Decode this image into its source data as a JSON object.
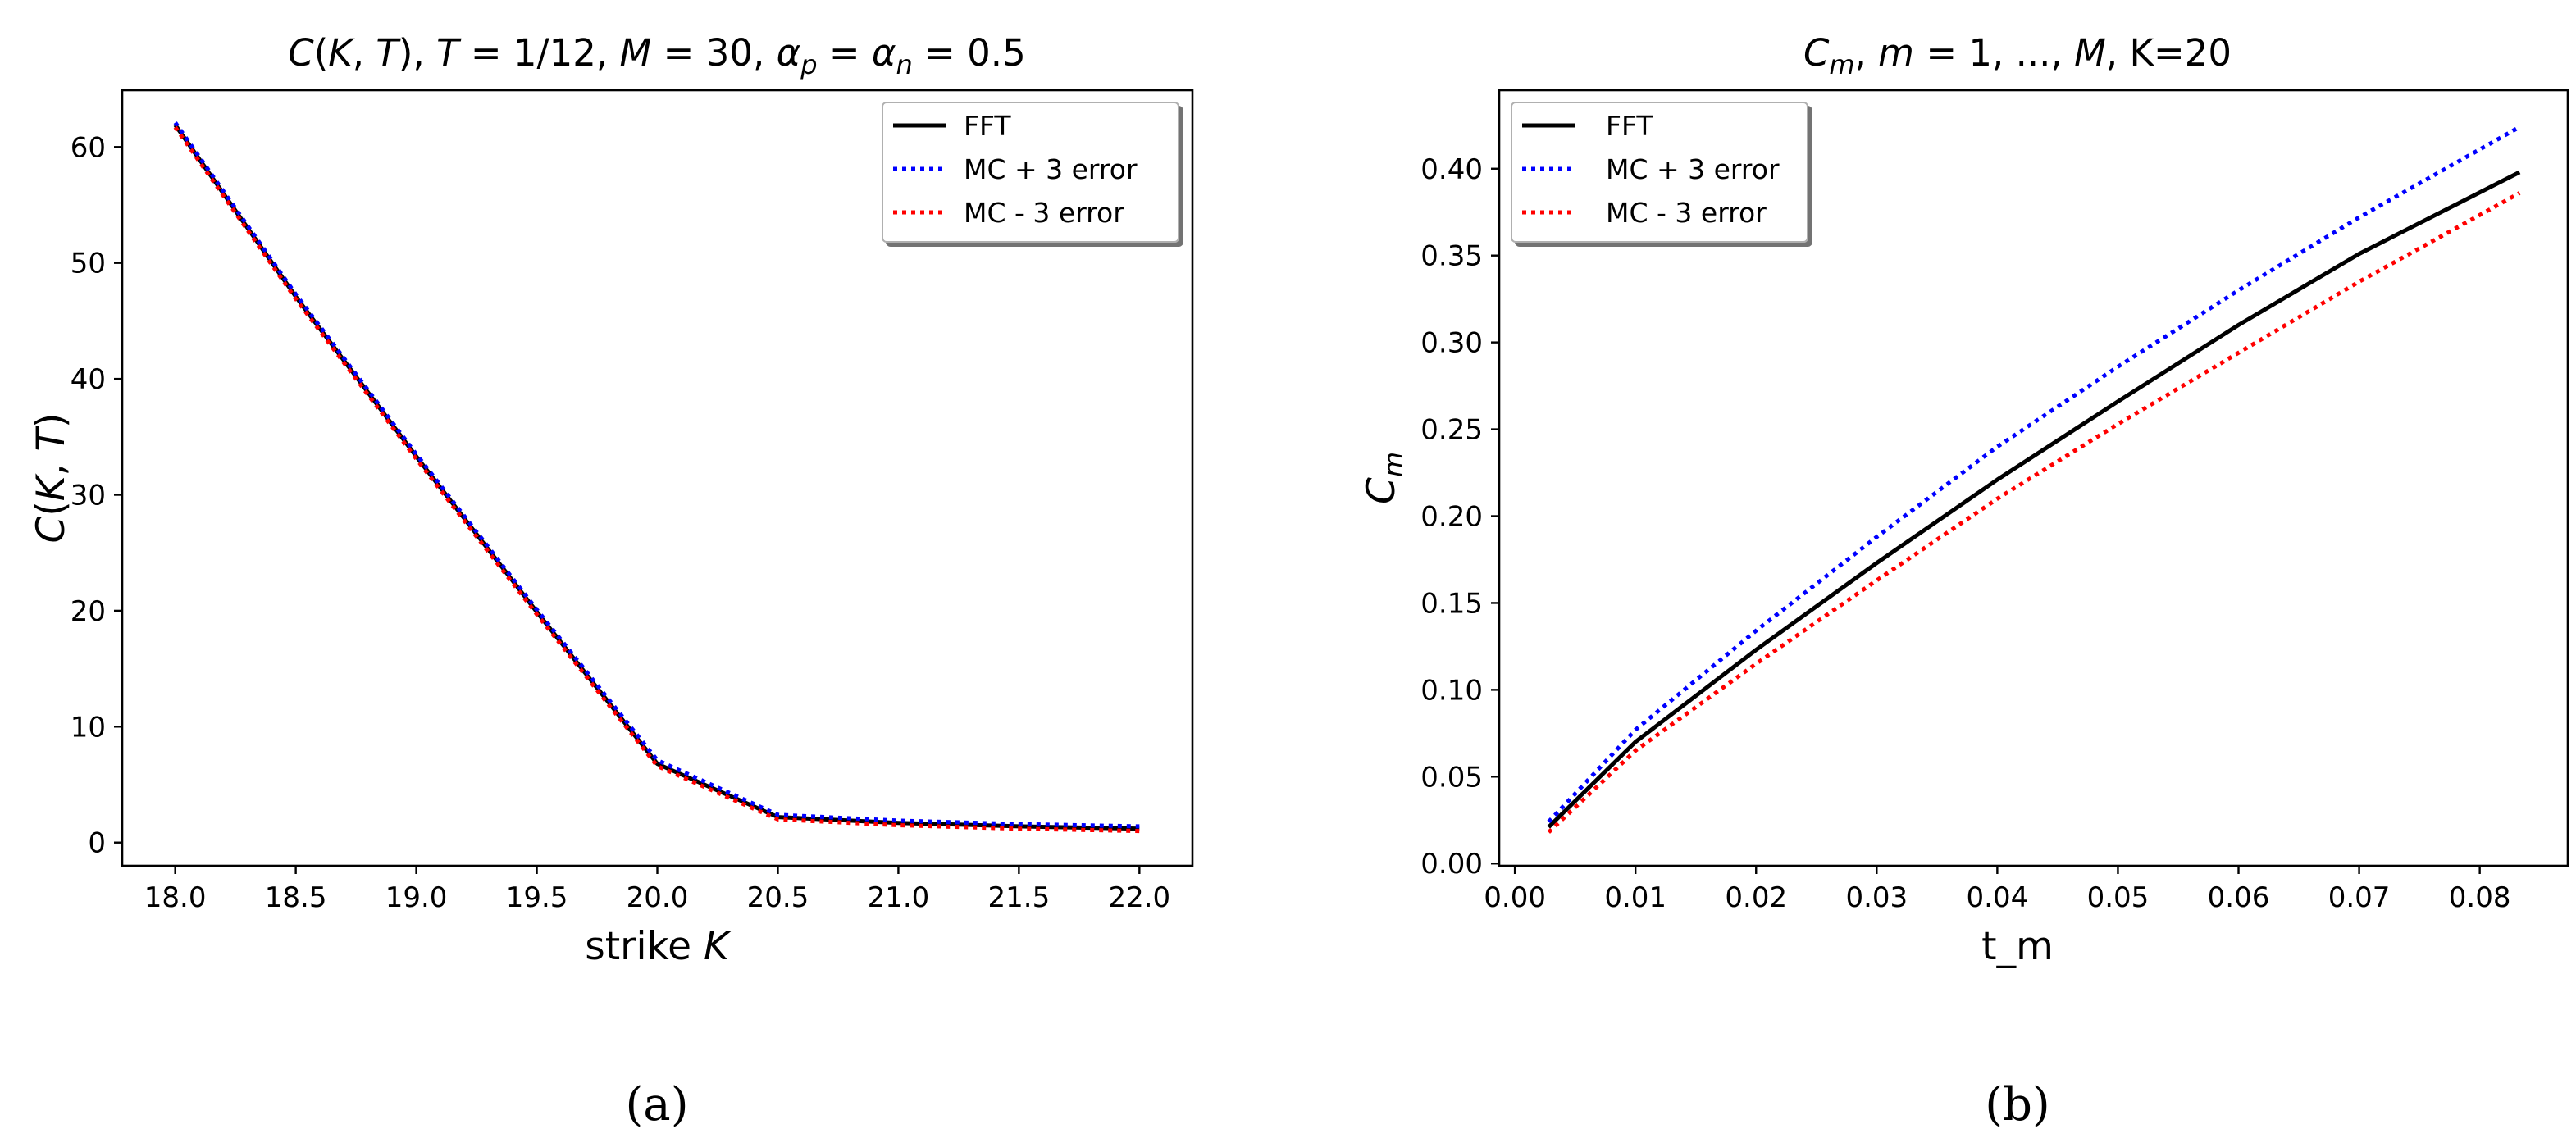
{
  "figures": [
    {
      "panel_label": "(a)",
      "title": "C(K,T), T = 1/12, M = 30, α_p = α_n = 0.5",
      "xlabel": "strike K",
      "ylabel": "C(K,T)",
      "legend": [
        "FFT",
        "MC + 3 error",
        "MC - 3 error"
      ]
    },
    {
      "panel_label": "(b)",
      "title": "C_m, m = 1, ..., M, K=20",
      "xlabel": "t_m",
      "ylabel": "C_m",
      "legend": [
        "FFT",
        "MC + 3 error",
        "MC - 3 error"
      ]
    }
  ],
  "chart_data": [
    {
      "type": "line",
      "title": "C(K,T), T = 1/12, M = 30, α_p = α_n = 0.5",
      "xlabel": "strike K",
      "ylabel": "C(K,T)",
      "xlim": [
        17.78,
        22.22
      ],
      "ylim": [
        -2.0,
        64.9
      ],
      "xticks": [
        18.0,
        18.5,
        19.0,
        19.5,
        20.0,
        20.5,
        21.0,
        21.5,
        22.0
      ],
      "xtick_labels": [
        "18.0",
        "18.5",
        "19.0",
        "19.5",
        "20.0",
        "20.5",
        "21.0",
        "21.5",
        "22.0"
      ],
      "yticks": [
        0,
        10,
        20,
        30,
        40,
        50,
        60
      ],
      "ytick_labels": [
        "0",
        "10",
        "20",
        "30",
        "40",
        "50",
        "60"
      ],
      "legend_position": "top-right",
      "x": [
        18.0,
        18.5,
        19.0,
        19.5,
        20.0,
        20.5,
        21.0,
        21.5,
        22.0
      ],
      "series": [
        {
          "name": "FFT",
          "color": "#000000",
          "style": "solid",
          "values": [
            61.9,
            47.1,
            33.3,
            19.9,
            6.8,
            2.2,
            1.7,
            1.4,
            1.2
          ]
        },
        {
          "name": "MC + 3 error",
          "color": "#0000ff",
          "style": "dotted",
          "values": [
            62.1,
            47.3,
            33.5,
            20.1,
            7.1,
            2.4,
            1.9,
            1.6,
            1.4
          ]
        },
        {
          "name": "MC - 3 error",
          "color": "#ff0000",
          "style": "dotted",
          "values": [
            61.7,
            46.9,
            33.1,
            19.7,
            6.6,
            2.0,
            1.5,
            1.2,
            1.0
          ]
        }
      ]
    },
    {
      "type": "line",
      "title": "C_m, m = 1, ..., M, K=20",
      "xlabel": "t_m",
      "ylabel": "C_m",
      "xlim": [
        -0.0013,
        0.0873
      ],
      "ylim": [
        -0.0013,
        0.4452
      ],
      "xticks": [
        0.0,
        0.01,
        0.02,
        0.03,
        0.04,
        0.05,
        0.06,
        0.07,
        0.08
      ],
      "xtick_labels": [
        "0.00",
        "0.01",
        "0.02",
        "0.03",
        "0.04",
        "0.05",
        "0.06",
        "0.07",
        "0.08"
      ],
      "yticks": [
        0.0,
        0.05,
        0.1,
        0.15,
        0.2,
        0.25,
        0.3,
        0.35,
        0.4
      ],
      "ytick_labels": [
        "0.00",
        "0.05",
        "0.10",
        "0.15",
        "0.20",
        "0.25",
        "0.30",
        "0.35",
        "0.40"
      ],
      "legend_position": "top-left",
      "x": [
        0.0028,
        0.01,
        0.02,
        0.03,
        0.04,
        0.05,
        0.06,
        0.07,
        0.0833
      ],
      "series": [
        {
          "name": "FFT",
          "color": "#000000",
          "style": "solid",
          "values": [
            0.021,
            0.07,
            0.123,
            0.173,
            0.221,
            0.266,
            0.31,
            0.351,
            0.398
          ]
        },
        {
          "name": "MC + 3 error",
          "color": "#0000ff",
          "style": "dotted",
          "values": [
            0.024,
            0.077,
            0.134,
            0.188,
            0.24,
            0.286,
            0.33,
            0.372,
            0.424
          ]
        },
        {
          "name": "MC - 3 error",
          "color": "#ff0000",
          "style": "dotted",
          "values": [
            0.018,
            0.065,
            0.115,
            0.163,
            0.21,
            0.253,
            0.294,
            0.335,
            0.386
          ]
        }
      ]
    }
  ]
}
